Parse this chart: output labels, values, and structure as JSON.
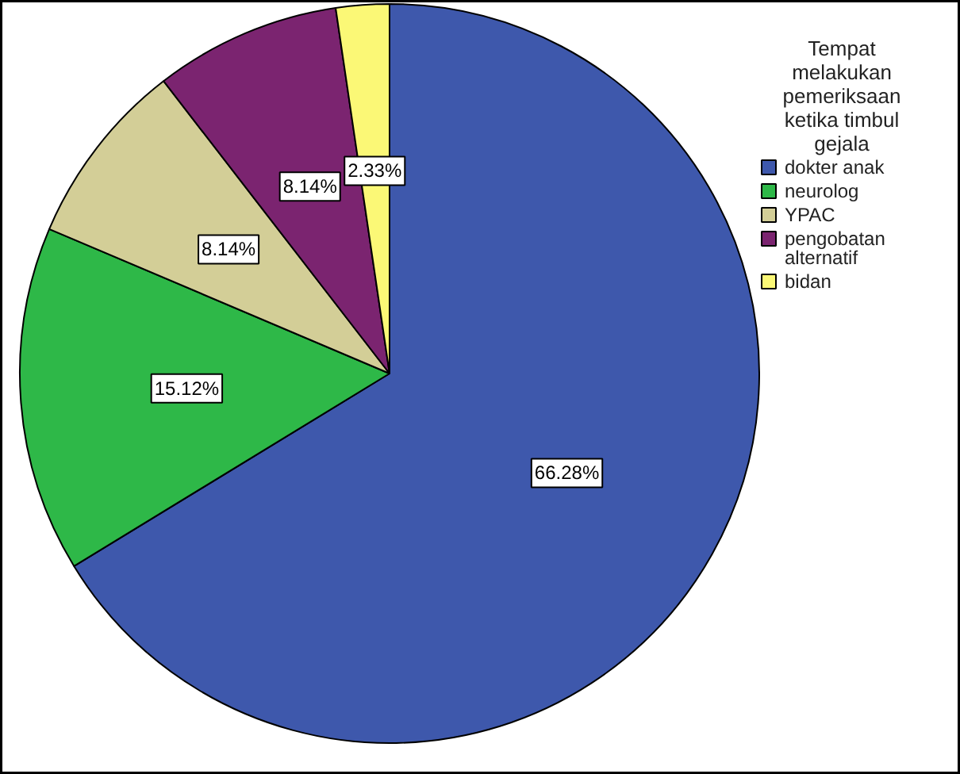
{
  "chart_data": {
    "type": "pie",
    "legend_title": "Tempat melakukan pemeriksaan ketika timbul gejala",
    "categories": [
      "dokter anak",
      "neurolog",
      "YPAC",
      "pengobatan alternatif",
      "bidan"
    ],
    "values": [
      66.28,
      15.12,
      8.14,
      8.14,
      2.33
    ],
    "value_labels": [
      "66.28%",
      "15.12%",
      "8.14%",
      "8.14%",
      "2.33%"
    ],
    "colors": [
      "#3e58ac",
      "#2eb848",
      "#d3ce97",
      "#7b2470",
      "#fbf876"
    ],
    "legend": "right"
  }
}
